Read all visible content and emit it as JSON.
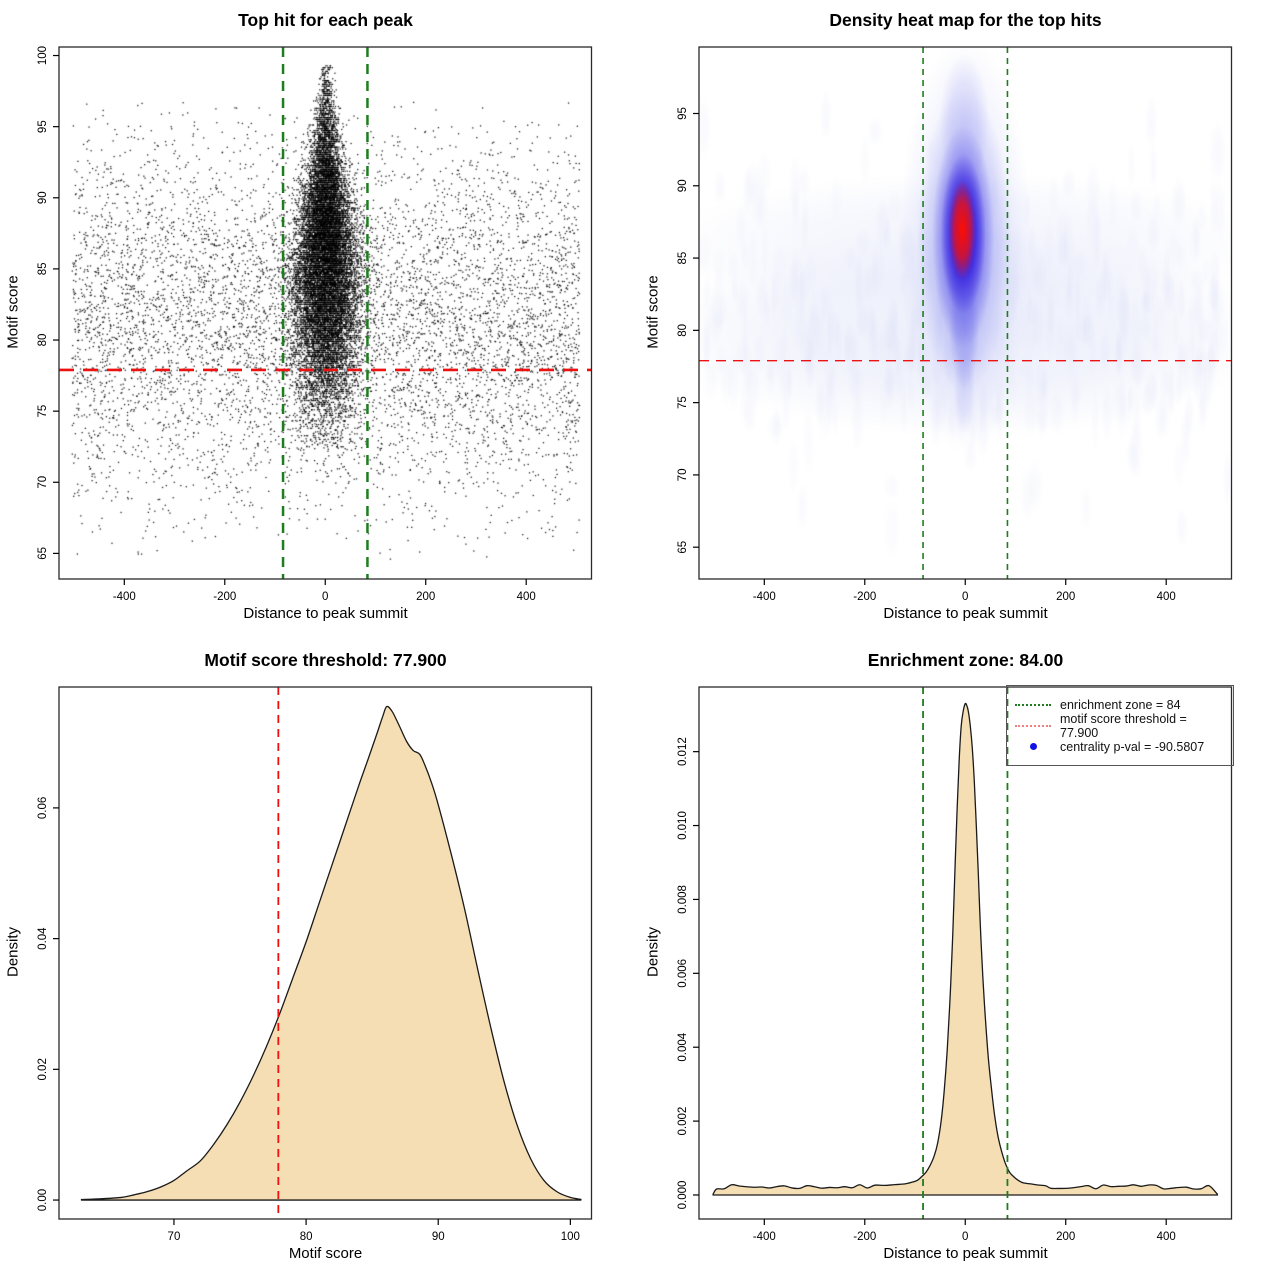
{
  "colors": {
    "background": "#ffffff",
    "point": "#000000",
    "green_line": "#1e7d1e",
    "red_line": "#ee1111",
    "area_fill": "#f5deb3",
    "area_stroke": "#1a1a1a",
    "axis": "#000000",
    "legend_green": "#1e7d1e",
    "legend_red": "#f08080",
    "legend_blue": "#1212e8",
    "heat_core": "#ff0f00",
    "heat_blue": "#2a10dd"
  },
  "chart_data": [
    {
      "type": "scatter",
      "title": "Top hit for each peak",
      "xlabel": "Distance to peak summit",
      "ylabel": "Motif score",
      "xlim": [
        -530,
        530
      ],
      "ylim": [
        63.2,
        100.6
      ],
      "xticks": [
        -400,
        -200,
        0,
        200,
        400
      ],
      "xtick_labels": [
        "-400",
        "-200",
        "0",
        "200",
        "400"
      ],
      "yticks": [
        65,
        70,
        75,
        80,
        85,
        90,
        95,
        100
      ],
      "ytick_labels": [
        "65",
        "70",
        "75",
        "80",
        "85",
        "90",
        "95",
        "100"
      ],
      "enrichment_zone_x": [
        -84,
        84
      ],
      "motif_score_threshold_y": 77.9,
      "points_model": {
        "seed": 1234,
        "background": {
          "n": 6800,
          "x_uniform": [
            -505,
            505
          ],
          "y_mean": 81.3,
          "y_sd": 6.4,
          "y_range": [
            64.6,
            96.8
          ]
        },
        "cluster": {
          "n": 15000,
          "y_mean": 85.6,
          "y_sd": 5.35,
          "y_range": [
            72.4,
            99.3
          ],
          "x_sd_top": 8,
          "x_sd_slope": 2.1,
          "x_sd_max": 34,
          "x_max": 112,
          "y_quantum": 0.13
        }
      }
    },
    {
      "type": "heatmap",
      "title": "Density heat map for the top hits",
      "xlabel": "Distance to peak summit",
      "ylabel": "Motif score",
      "xlim": [
        -530,
        530
      ],
      "ylim": [
        62.8,
        99.6
      ],
      "xticks": [
        -400,
        -200,
        0,
        200,
        400
      ],
      "xtick_labels": [
        "-400",
        "-200",
        "0",
        "200",
        "400"
      ],
      "yticks": [
        65,
        70,
        75,
        80,
        85,
        90,
        95
      ],
      "ytick_labels": [
        "65",
        "70",
        "75",
        "80",
        "85",
        "90",
        "95"
      ],
      "enrichment_zone_x": [
        -84,
        84
      ],
      "motif_score_threshold_y": 77.9,
      "hotspot": {
        "x": -4,
        "y_score": 86.8,
        "red_core_score_range": [
          84.5,
          89.5
        ],
        "blue_score_range": [
          78,
          94
        ]
      },
      "noise_seed": 77
    },
    {
      "type": "area",
      "title": "Motif score threshold: 77.900",
      "xlabel": "Motif score",
      "ylabel": "Density",
      "xlim": [
        61.3,
        101.6
      ],
      "ylim": [
        -0.0029,
        0.0785
      ],
      "xticks": [
        70,
        80,
        90,
        100
      ],
      "xtick_labels": [
        "70",
        "80",
        "90",
        "100"
      ],
      "yticks": [
        0,
        0.02,
        0.04,
        0.06
      ],
      "ytick_labels": [
        "0.00",
        "0.02",
        "0.04",
        "0.06"
      ],
      "threshold_x": 77.9,
      "curve": [
        [
          63.0,
          8e-05
        ],
        [
          64.5,
          0.0002
        ],
        [
          66,
          0.0004
        ],
        [
          67,
          0.0008
        ],
        [
          68,
          0.0013
        ],
        [
          69,
          0.002
        ],
        [
          70,
          0.003
        ],
        [
          71,
          0.0045
        ],
        [
          72,
          0.006
        ],
        [
          73,
          0.0085
        ],
        [
          74,
          0.0115
        ],
        [
          75,
          0.015
        ],
        [
          76,
          0.019
        ],
        [
          77,
          0.0235
        ],
        [
          78,
          0.0285
        ],
        [
          79,
          0.034
        ],
        [
          80,
          0.0395
        ],
        [
          81,
          0.0455
        ],
        [
          82,
          0.0515
        ],
        [
          83,
          0.0575
        ],
        [
          84,
          0.0635
        ],
        [
          84.7,
          0.0675
        ],
        [
          85.3,
          0.071
        ],
        [
          85.8,
          0.074
        ],
        [
          86.1,
          0.0755
        ],
        [
          86.5,
          0.0748
        ],
        [
          87.0,
          0.0728
        ],
        [
          87.6,
          0.0702
        ],
        [
          88.1,
          0.0688
        ],
        [
          88.6,
          0.0682
        ],
        [
          89.0,
          0.0665
        ],
        [
          89.5,
          0.0638
        ],
        [
          90,
          0.0605
        ],
        [
          91,
          0.0528
        ],
        [
          92,
          0.0445
        ],
        [
          93,
          0.0352
        ],
        [
          94,
          0.0262
        ],
        [
          95,
          0.018
        ],
        [
          96,
          0.0113
        ],
        [
          97,
          0.0063
        ],
        [
          98,
          0.003
        ],
        [
          99,
          0.00125
        ],
        [
          100,
          0.0004
        ],
        [
          100.8,
          0.0001
        ]
      ]
    },
    {
      "type": "area",
      "title": "Enrichment zone: 84.00",
      "xlabel": "Distance to peak summit",
      "ylabel": "Density",
      "xlim": [
        -530,
        530
      ],
      "ylim": [
        -0.00065,
        0.01375
      ],
      "xticks": [
        -400,
        -200,
        0,
        200,
        400
      ],
      "xtick_labels": [
        "-400",
        "-200",
        "0",
        "200",
        "400"
      ],
      "yticks": [
        0,
        0.002,
        0.004,
        0.006,
        0.008,
        0.01,
        0.012
      ],
      "ytick_labels": [
        "0.000",
        "0.002",
        "0.004",
        "0.006",
        "0.008",
        "0.010",
        "0.012"
      ],
      "zone_x": [
        -84,
        84
      ],
      "baseline": {
        "level": 0.00016,
        "noise": 0.00012,
        "range": [
          -500,
          500
        ],
        "seed": 7
      },
      "curve": [
        [
          -160,
          0.00026
        ],
        [
          -140,
          0.00028
        ],
        [
          -120,
          0.0003
        ],
        [
          -105,
          0.00035
        ],
        [
          -95,
          0.0004
        ],
        [
          -85,
          0.00052
        ],
        [
          -78,
          0.00062
        ],
        [
          -70,
          0.0008
        ],
        [
          -62,
          0.00105
        ],
        [
          -55,
          0.0014
        ],
        [
          -48,
          0.002
        ],
        [
          -42,
          0.0028
        ],
        [
          -36,
          0.0039
        ],
        [
          -30,
          0.0054
        ],
        [
          -25,
          0.007
        ],
        [
          -20,
          0.009
        ],
        [
          -16,
          0.0105
        ],
        [
          -12,
          0.0118
        ],
        [
          -8,
          0.0127
        ],
        [
          -4,
          0.0131
        ],
        [
          0,
          0.0133
        ],
        [
          3,
          0.01325
        ],
        [
          6,
          0.0131
        ],
        [
          10,
          0.0127
        ],
        [
          14,
          0.0121
        ],
        [
          18,
          0.0112
        ],
        [
          22,
          0.01
        ],
        [
          26,
          0.0087
        ],
        [
          30,
          0.0073
        ],
        [
          35,
          0.0059
        ],
        [
          40,
          0.0048
        ],
        [
          46,
          0.0037
        ],
        [
          52,
          0.0029
        ],
        [
          58,
          0.0022
        ],
        [
          65,
          0.0016
        ],
        [
          72,
          0.0012
        ],
        [
          80,
          0.00085
        ],
        [
          88,
          0.00062
        ],
        [
          96,
          0.0005
        ],
        [
          105,
          0.0004
        ],
        [
          115,
          0.00033
        ],
        [
          130,
          0.0003
        ],
        [
          145,
          0.00027
        ],
        [
          160,
          0.00025
        ]
      ],
      "legend": {
        "items": [
          {
            "swatch": "green-dotted",
            "label": "enrichment zone = 84"
          },
          {
            "swatch": "red-dotted",
            "label": "motif score threshold = 77.900"
          },
          {
            "swatch": "blue-point",
            "label": "centrality p-val = -90.5807"
          }
        ]
      }
    }
  ]
}
